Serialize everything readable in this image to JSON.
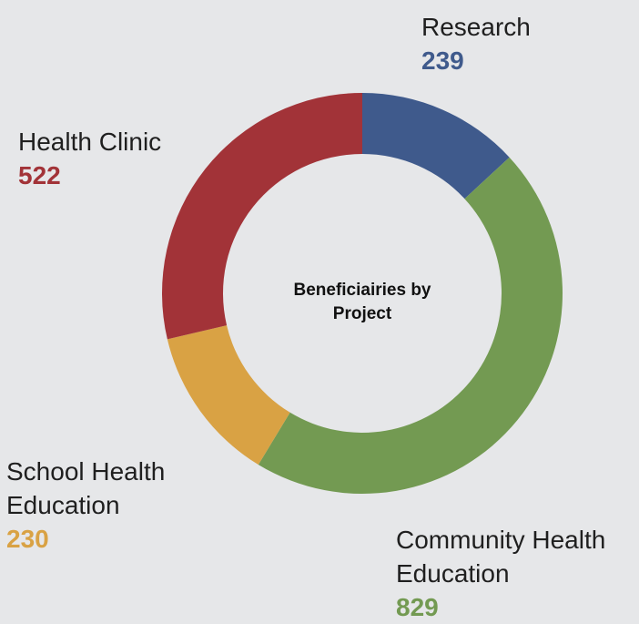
{
  "chart_data": {
    "type": "donut",
    "title": "Beneficiairies by Project",
    "categories": [
      "Research",
      "Community Health Education",
      "School Health Education",
      "Health Clinic"
    ],
    "values": [
      239,
      829,
      230,
      522
    ],
    "colors": [
      "#3f5a8c",
      "#739a52",
      "#d9a244",
      "#a23338"
    ]
  }
}
